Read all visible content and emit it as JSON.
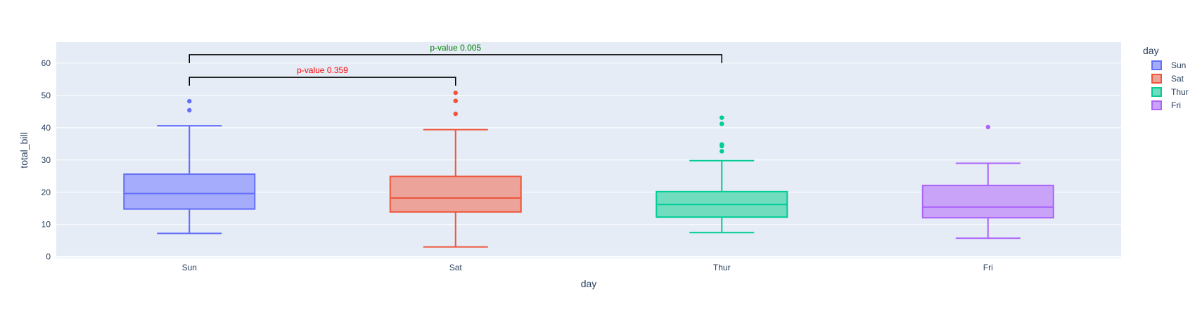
{
  "chart_data": {
    "type": "box",
    "xlabel": "day",
    "ylabel": "total_bill",
    "ylim": [
      -0.5,
      66.5
    ],
    "yticks": [
      0,
      10,
      20,
      30,
      40,
      50,
      60
    ],
    "categories": [
      "Sun",
      "Sat",
      "Thur",
      "Fri"
    ],
    "grid": true,
    "legend": {
      "title": "day",
      "placement": "top-right"
    },
    "series": [
      {
        "name": "Sun",
        "category": "Sun",
        "color": "#636efa",
        "fill": "#a5acfb",
        "min": 7.25,
        "q1": 14.8,
        "median": 19.6,
        "q3": 25.6,
        "max": 40.6,
        "outliers": [
          45.4,
          48.2
        ]
      },
      {
        "name": "Sat",
        "category": "Sat",
        "color": "#ef553b",
        "fill": "#eba39a",
        "min": 3.07,
        "q1": 13.9,
        "median": 18.2,
        "q3": 24.9,
        "max": 39.4,
        "outliers": [
          44.3,
          48.3,
          48.3,
          50.8
        ]
      },
      {
        "name": "Thur",
        "category": "Thur",
        "color": "#00cc96",
        "fill": "#72dcbf",
        "min": 7.5,
        "q1": 12.3,
        "median": 16.2,
        "q3": 20.2,
        "max": 29.8,
        "outliers": [
          32.7,
          34.3,
          34.8,
          41.2,
          43.1
        ]
      },
      {
        "name": "Fri",
        "category": "Fri",
        "color": "#ab63fa",
        "fill": "#c9a3f7",
        "min": 5.75,
        "q1": 12.1,
        "median": 15.4,
        "q3": 22.1,
        "max": 28.97,
        "outliers": [
          40.2
        ]
      }
    ],
    "annotations": [
      {
        "text": "p-value 0.359",
        "from": "Sun",
        "to": "Sat",
        "y_bottom": 53,
        "y_top": 55.6,
        "color": "#ff0000"
      },
      {
        "text": "p-value 0.005",
        "from": "Sun",
        "to": "Thur",
        "y_bottom": 60,
        "y_top": 62.6,
        "color": "#008000"
      }
    ]
  }
}
